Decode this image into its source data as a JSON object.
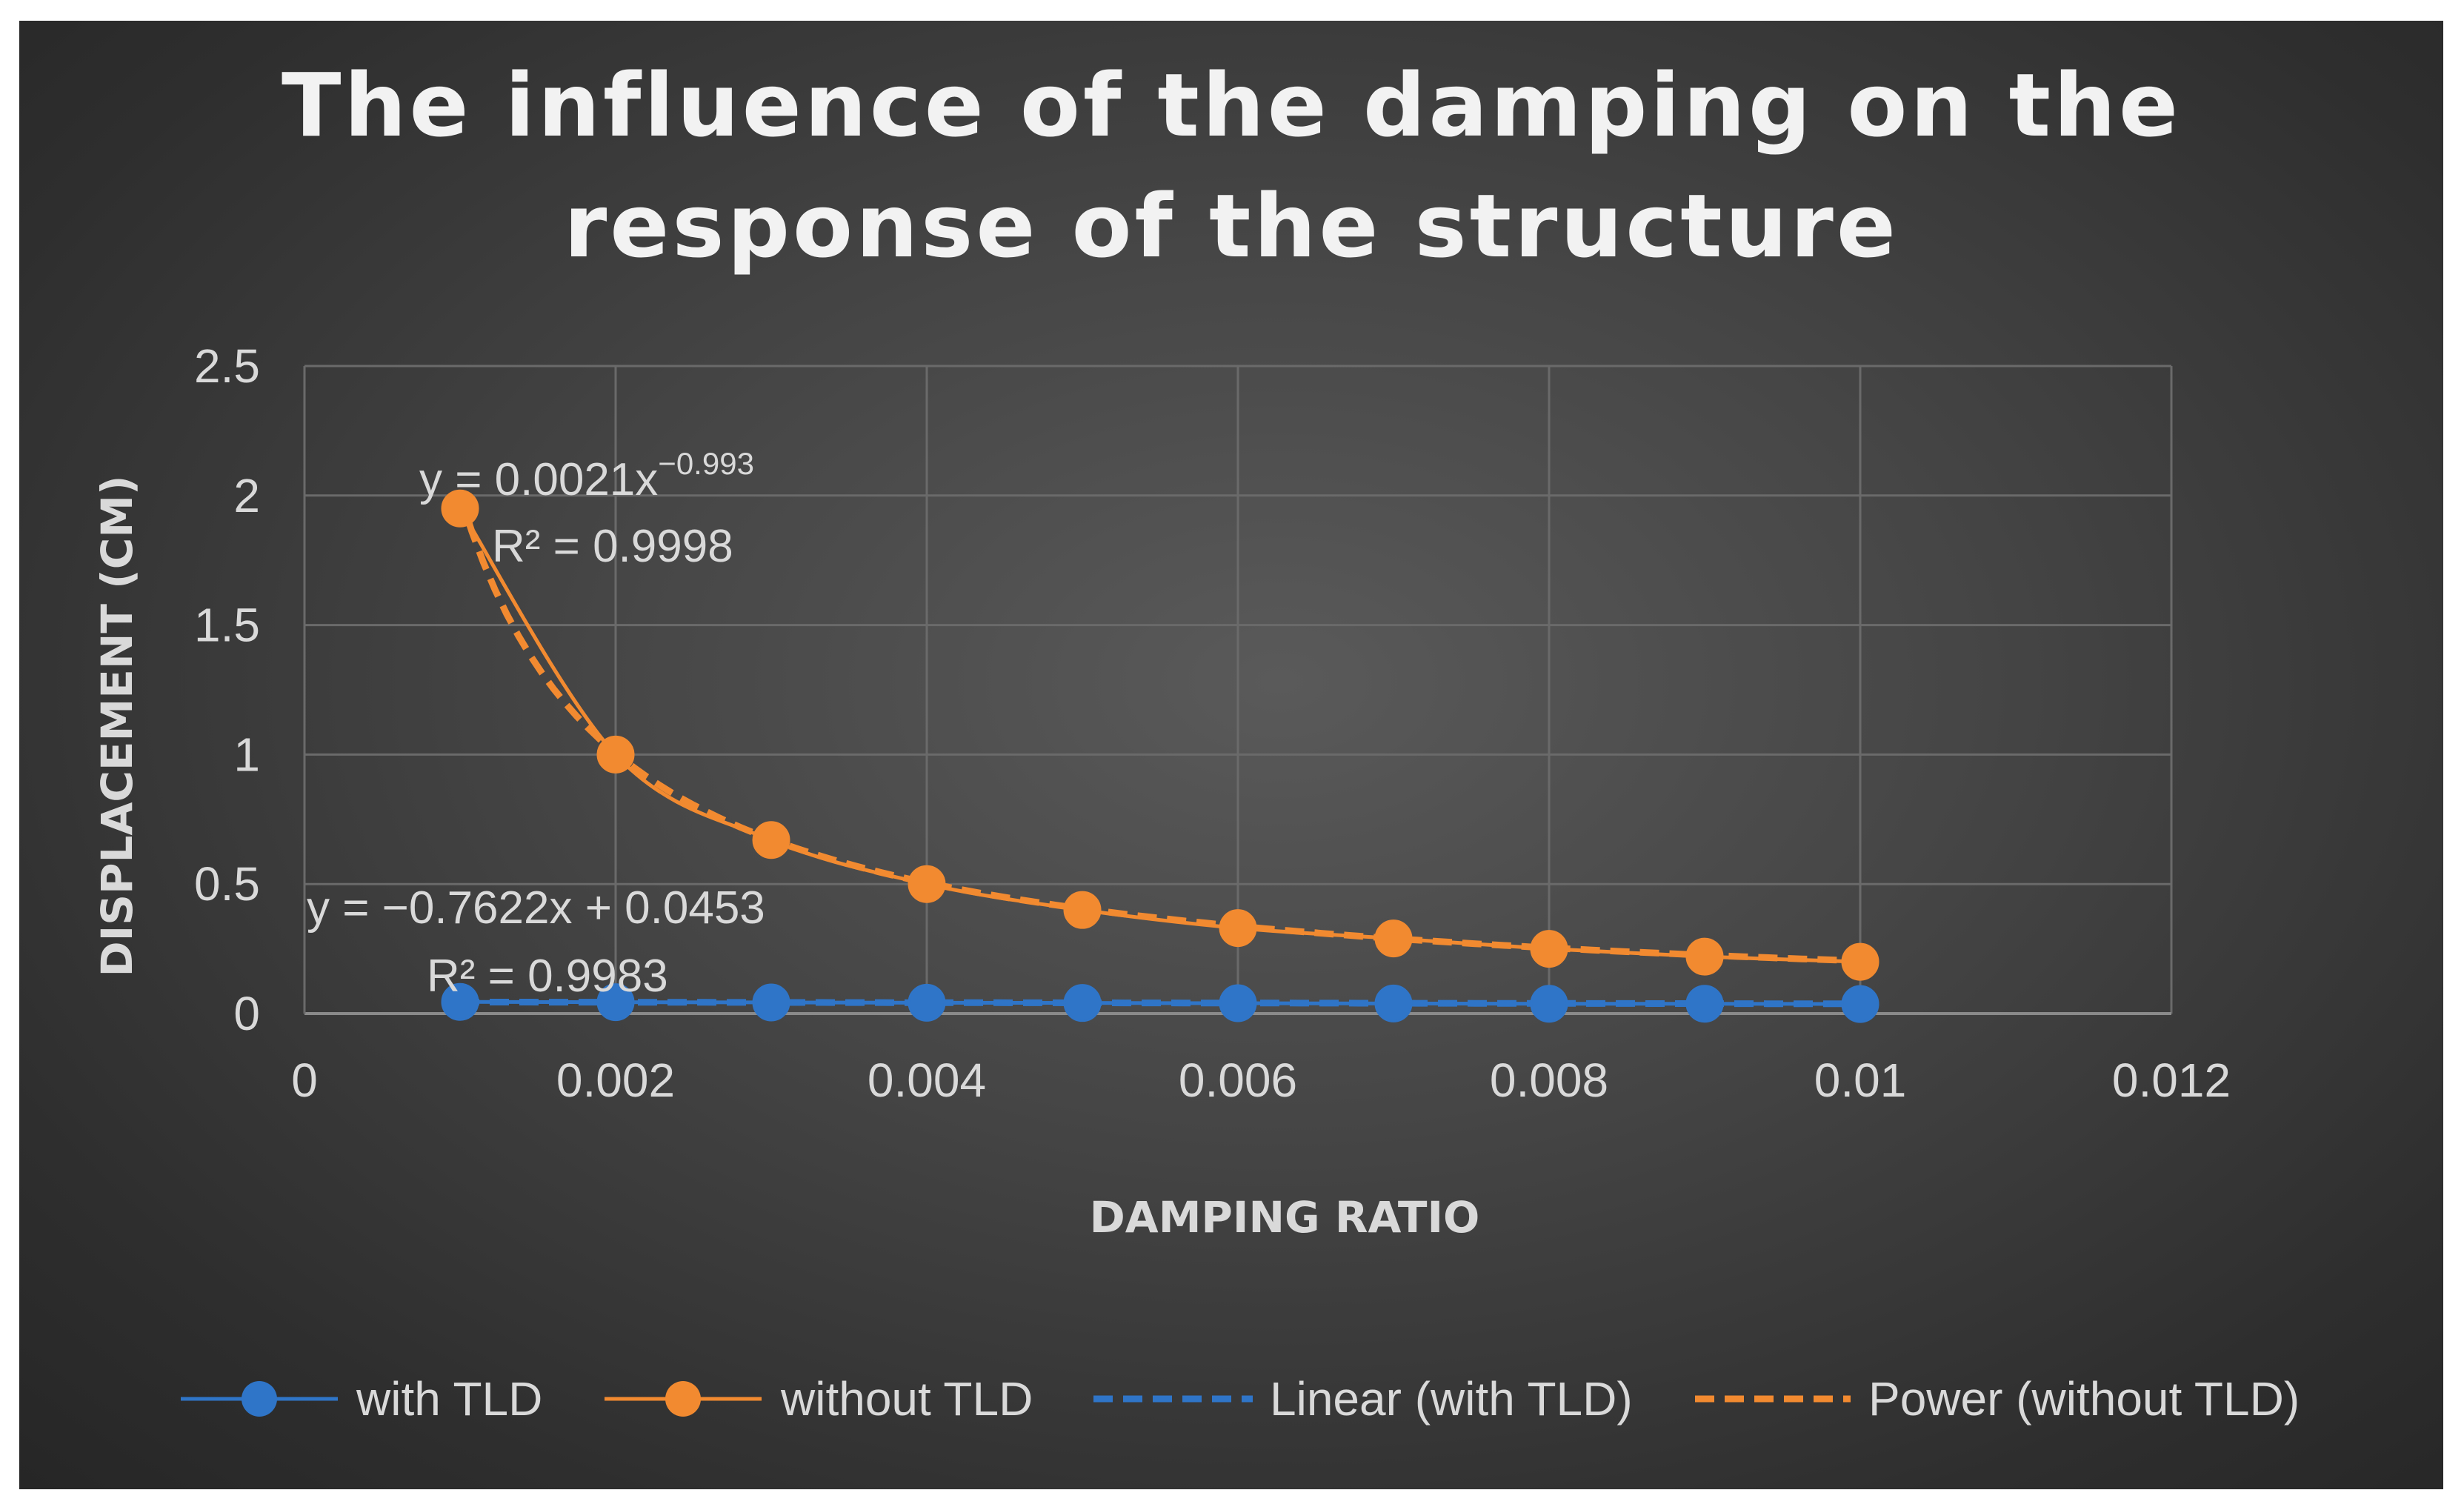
{
  "chart_data": {
    "type": "scatter",
    "title_lines": [
      "The influence of the damping on the",
      "response of the structure"
    ],
    "xlabel": "DAMPING RATIO",
    "ylabel": "DISPLACEMENT (CM)",
    "xlim": [
      0,
      0.012
    ],
    "ylim": [
      0,
      2.5
    ],
    "x_ticks": [
      0,
      0.002,
      0.004,
      0.006,
      0.008,
      0.01,
      0.012
    ],
    "x_tick_labels": [
      "0",
      "0.002",
      "0.004",
      "0.006",
      "0.008",
      "0.01",
      "0.012"
    ],
    "y_ticks": [
      0,
      0.5,
      1,
      1.5,
      2,
      2.5
    ],
    "y_tick_labels": [
      "0",
      "0.5",
      "1",
      "1.5",
      "2",
      "2.5"
    ],
    "grid": true,
    "legend_position": "bottom",
    "series": [
      {
        "name": "with TLD",
        "color": "#2f75c8",
        "line": "solid",
        "markers": true,
        "x": [
          0.001,
          0.002,
          0.003,
          0.004,
          0.005,
          0.006,
          0.007,
          0.008,
          0.009,
          0.01
        ],
        "y": [
          0.045,
          0.044,
          0.043,
          0.042,
          0.041,
          0.04,
          0.039,
          0.038,
          0.038,
          0.037
        ]
      },
      {
        "name": "without TLD",
        "color": "#f28a30",
        "line": "solid",
        "markers": true,
        "x": [
          0.001,
          0.002,
          0.003,
          0.004,
          0.005,
          0.006,
          0.007,
          0.008,
          0.009,
          0.01
        ],
        "y": [
          1.95,
          1.0,
          0.67,
          0.5,
          0.4,
          0.33,
          0.29,
          0.25,
          0.22,
          0.2
        ]
      },
      {
        "name": "Linear (with TLD)",
        "color": "#2f75c8",
        "line": "dashed",
        "markers": false,
        "trend": "linear",
        "slope": -0.7622,
        "intercept": 0.0453,
        "x_range": [
          0.001,
          0.01
        ]
      },
      {
        "name": "Power (without TLD)",
        "color": "#f28a30",
        "line": "dashed",
        "markers": false,
        "trend": "power",
        "coef": 0.0021,
        "exponent": -0.993,
        "x_range": [
          0.001,
          0.01
        ]
      }
    ],
    "annotations": {
      "power_eq_main": "y = 0.0021x",
      "power_eq_exp": "−0.993",
      "power_r2": "R² = 0.9998",
      "linear_eq": "y = −0.7622x + 0.0453",
      "linear_r2": "R² = 0.9983"
    }
  }
}
